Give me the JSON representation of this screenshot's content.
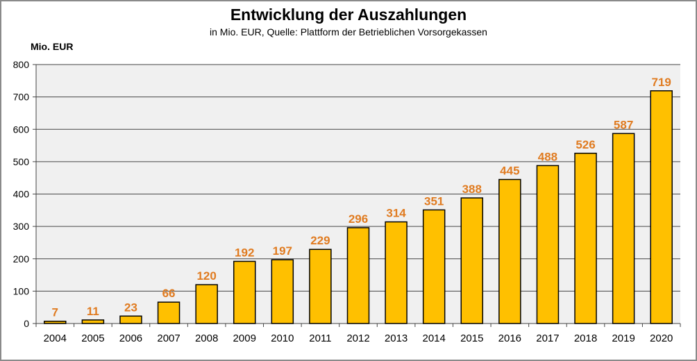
{
  "chart_data": {
    "type": "bar",
    "title": "Entwicklung  der Auszahlungen",
    "subtitle": "in Mio. EUR, Quelle: Plattform der Betrieblichen Vorsorgekassen",
    "ylabel": "Mio. EUR",
    "xlabel": "",
    "categories": [
      "2004",
      "2005",
      "2006",
      "2007",
      "2008",
      "2009",
      "2010",
      "2011",
      "2012",
      "2013",
      "2014",
      "2015",
      "2016",
      "2017",
      "2018",
      "2019",
      "2020"
    ],
    "values": [
      7,
      11,
      23,
      66,
      120,
      192,
      197,
      229,
      296,
      314,
      351,
      388,
      445,
      488,
      526,
      587,
      719
    ],
    "ylim": [
      0,
      800
    ],
    "yticks": [
      0,
      100,
      200,
      300,
      400,
      500,
      600,
      700,
      800
    ],
    "grid": true,
    "legend": "none",
    "colors": {
      "bar": "#FFC000",
      "label": "#E07B20",
      "plot_bg": "#F0F0F0"
    }
  }
}
